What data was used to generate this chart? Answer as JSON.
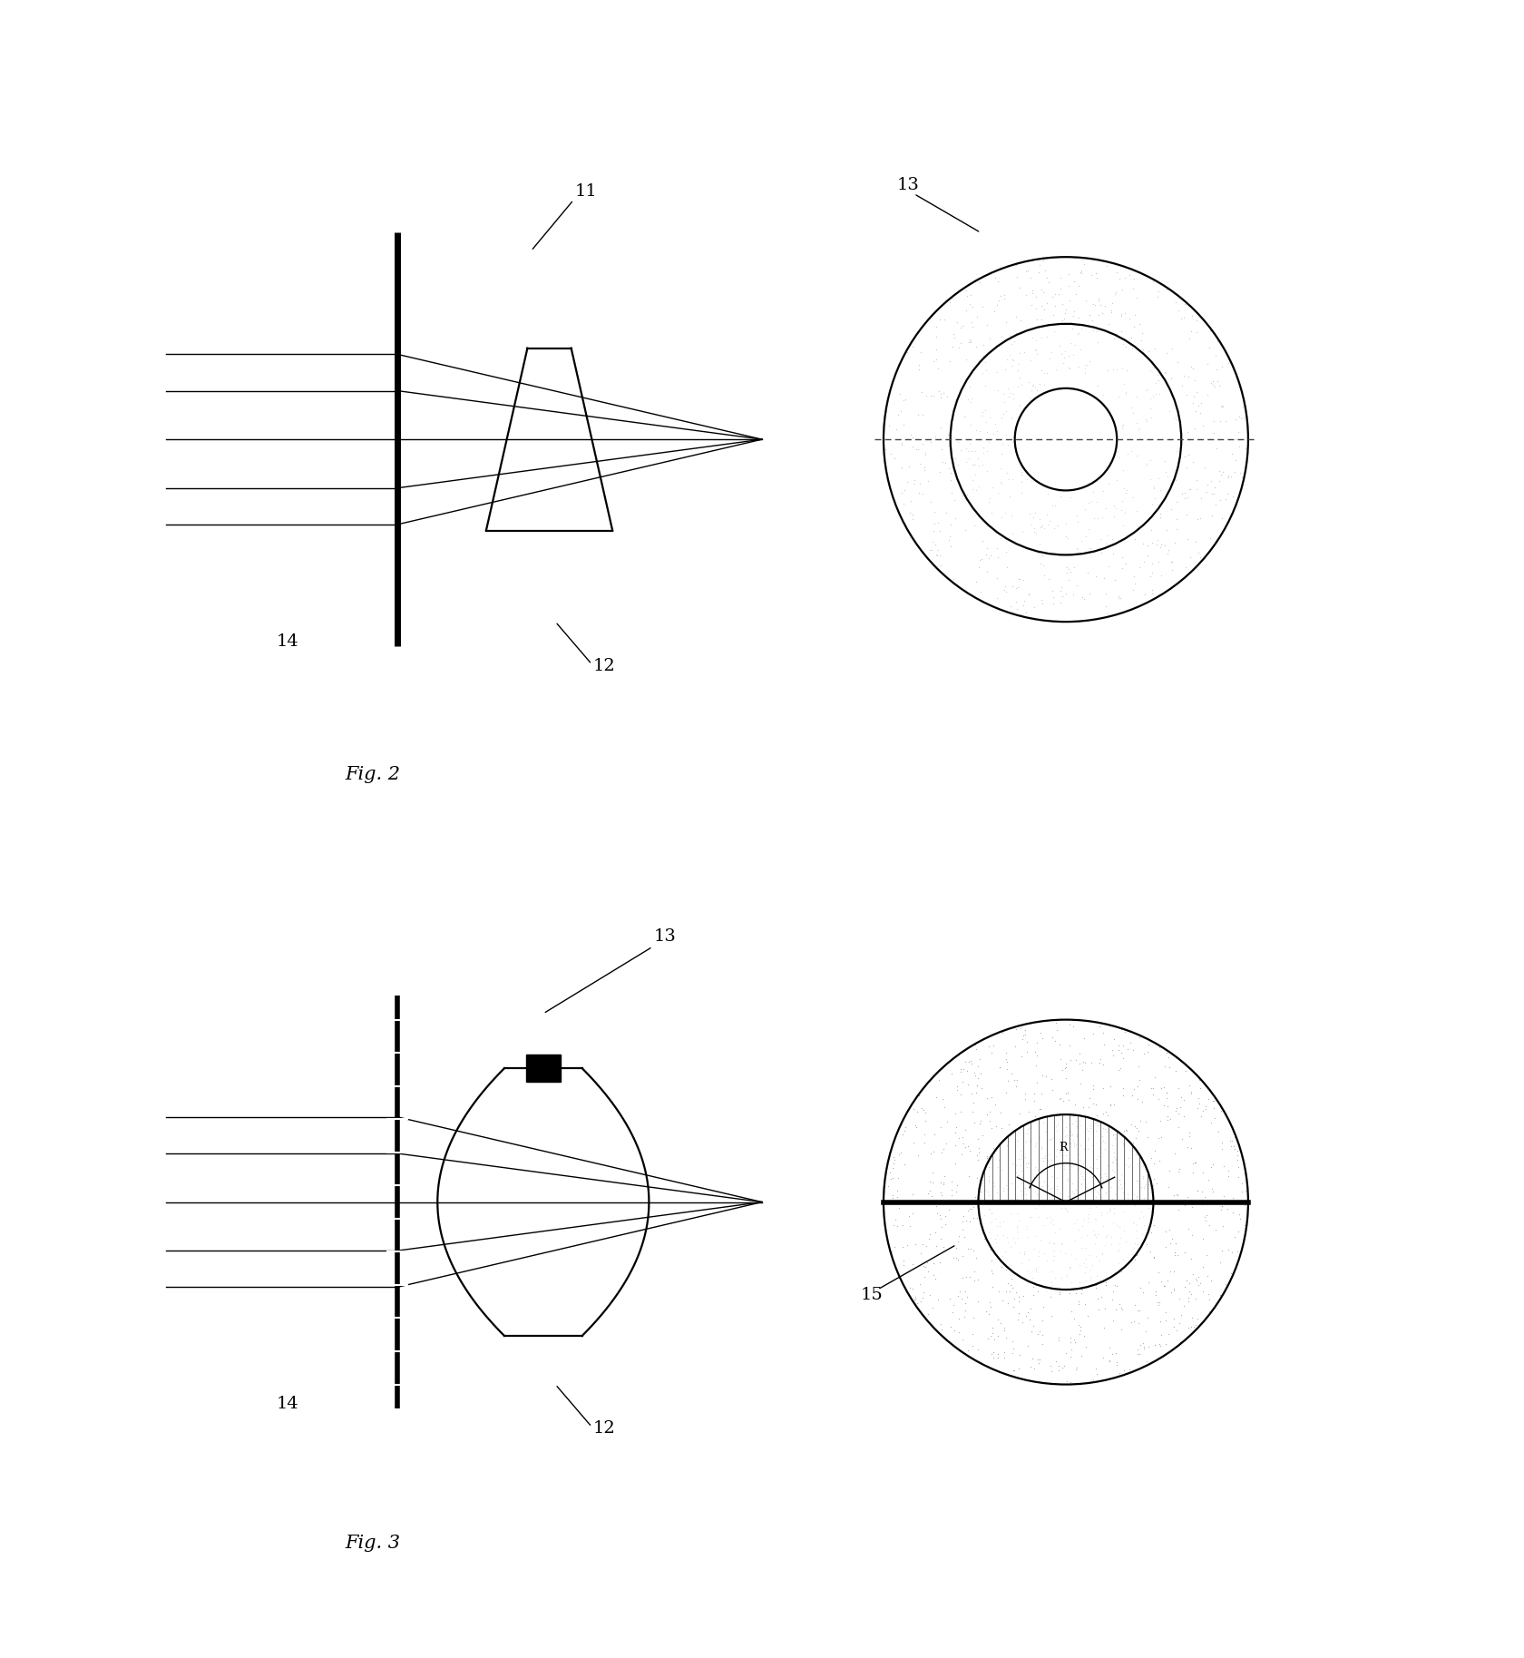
{
  "background_color": "#ffffff",
  "fig2_label": "Fig. 2",
  "fig3_label": "Fig. 3",
  "label_11": "11",
  "label_12": "12",
  "label_13": "13",
  "label_14": "14",
  "label_15": "15",
  "text_color": "#000000",
  "line_color": "#000000",
  "stipple_light": "#cccccc",
  "stipple_medium": "#aaaaaa",
  "stipple_dark": "#888888"
}
